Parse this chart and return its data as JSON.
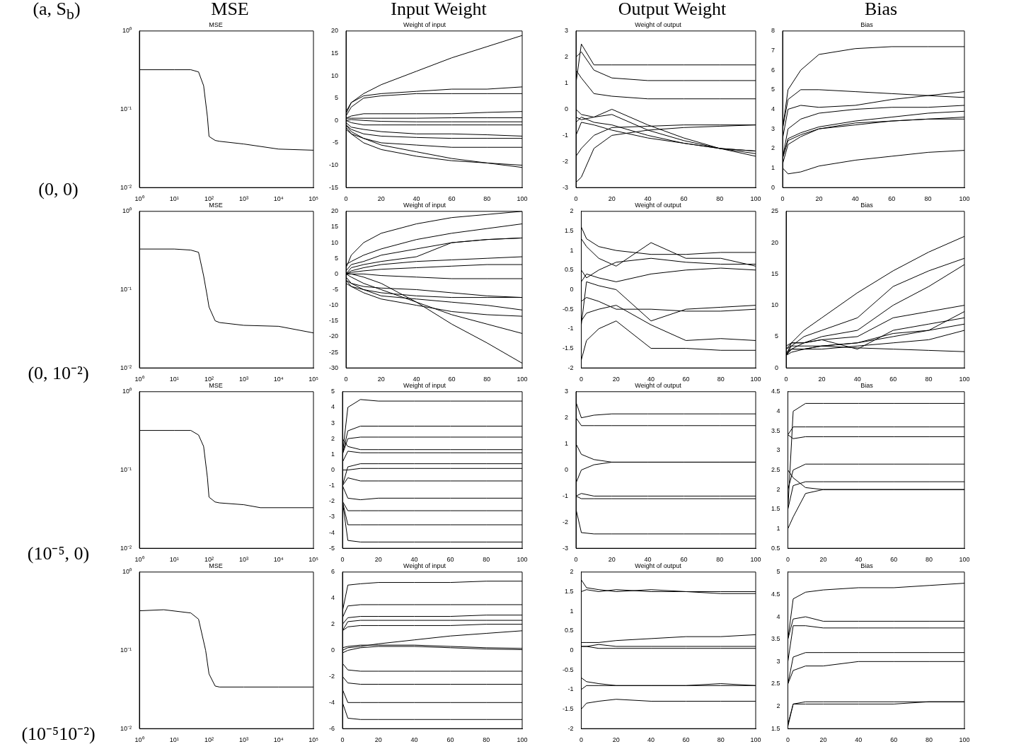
{
  "chart_data": [
    {
      "type": "line",
      "title": "MSE",
      "annotations": [
        "(a, S$_{b}$)",
        "MSE",
        "(0, 0)"
      ],
      "log": "xy",
      "marker": "none",
      "line_style": "solid",
      "x": [
        1,
        10,
        30,
        50,
        70,
        90,
        100,
        150,
        200,
        1000,
        10000,
        100000
      ],
      "xlim": [
        1,
        100000
      ],
      "xticks": [
        {
          "value": 1,
          "label": "10⁰"
        },
        {
          "value": 10,
          "label": "10¹"
        },
        {
          "value": 100,
          "label": "10²"
        },
        {
          "value": 1000,
          "label": "10³"
        },
        {
          "value": 10000,
          "label": "10⁴"
        },
        {
          "value": 100000,
          "label": "10⁵"
        }
      ],
      "ylim": [
        0.01,
        1
      ],
      "yticks": [
        {
          "value": 0.01,
          "label": "10⁻²"
        },
        {
          "value": 0.1,
          "label": "10⁻¹"
        },
        {
          "value": 1,
          "label": "10⁰"
        }
      ],
      "series": [
        {
          "color": "#000000",
          "values": [
            0.32,
            0.32,
            0.32,
            0.3,
            0.2,
            0.08,
            0.045,
            0.04,
            0.039,
            0.036,
            0.031,
            0.03
          ]
        }
      ]
    },
    {
      "type": "line",
      "title": "Weight of input",
      "annotations": [
        "Input Weight"
      ],
      "marker": "none",
      "line_style": "solid",
      "x": [
        0,
        3,
        10,
        20,
        40,
        60,
        80,
        100
      ],
      "xlim": [
        0,
        100
      ],
      "xticks": [
        0,
        20,
        40,
        60,
        80,
        100
      ],
      "ylim": [
        -15,
        20
      ],
      "yticks": [
        -15,
        -10,
        -5,
        0,
        5,
        10,
        15,
        20
      ],
      "series": [
        {
          "color": "#000000",
          "values": [
            2,
            4,
            6,
            8,
            11,
            14,
            16.5,
            19
          ]
        },
        {
          "color": "#000000",
          "values": [
            1.5,
            4,
            5.5,
            6,
            6.5,
            7,
            7,
            7.5
          ]
        },
        {
          "color": "#000000",
          "values": [
            1,
            3,
            5,
            5.5,
            6,
            6,
            6,
            6
          ]
        },
        {
          "color": "#000000",
          "values": [
            0.5,
            1,
            1.5,
            1.5,
            1.5,
            1.5,
            1.8,
            2
          ]
        },
        {
          "color": "#000000",
          "values": [
            0.5,
            0.5,
            0.5,
            0.5,
            0.5,
            0.6,
            0.6,
            0.6
          ]
        },
        {
          "color": "#000000",
          "values": [
            0,
            0.2,
            0,
            -0.2,
            -0.3,
            -0.3,
            -0.3,
            -0.3
          ]
        },
        {
          "color": "#000000",
          "values": [
            0,
            -0.5,
            -1,
            -1,
            -1,
            -1,
            -1,
            -1
          ]
        },
        {
          "color": "#000000",
          "values": [
            -0.5,
            -1.5,
            -2,
            -2.5,
            -3,
            -3,
            -3.2,
            -3.5
          ]
        },
        {
          "color": "#000000",
          "values": [
            -1,
            -2,
            -3,
            -3.5,
            -3.8,
            -4,
            -4,
            -4
          ]
        },
        {
          "color": "#000000",
          "values": [
            -1.5,
            -3,
            -4,
            -5,
            -5.5,
            -6,
            -6,
            -6
          ]
        },
        {
          "color": "#000000",
          "values": [
            -2,
            -3,
            -5,
            -6.5,
            -8,
            -9,
            -9.5,
            -10
          ]
        },
        {
          "color": "#000000",
          "values": [
            -1,
            -2.5,
            -4,
            -5.5,
            -7,
            -8.5,
            -9.5,
            -10.5
          ]
        }
      ]
    },
    {
      "type": "line",
      "title": "Weight of output",
      "annotations": [
        "Output Weight"
      ],
      "marker": "none",
      "line_style": "solid",
      "x": [
        0,
        3,
        10,
        20,
        40,
        60,
        80,
        100
      ],
      "xlim": [
        0,
        100
      ],
      "xticks": [
        0,
        20,
        40,
        60,
        80,
        100
      ],
      "ylim": [
        -3,
        3
      ],
      "yticks": [
        -3,
        -2,
        -1,
        0,
        1,
        2,
        3
      ],
      "series": [
        {
          "color": "#000000",
          "values": [
            1,
            2.5,
            1.7,
            1.7,
            1.7,
            1.7,
            1.7,
            1.7
          ]
        },
        {
          "color": "#000000",
          "values": [
            2,
            2.2,
            1.5,
            1.2,
            1.1,
            1.1,
            1.1,
            1.1
          ]
        },
        {
          "color": "#000000",
          "values": [
            1.5,
            1.2,
            0.6,
            0.5,
            0.4,
            0.4,
            0.4,
            0.4
          ]
        },
        {
          "color": "#000000",
          "values": [
            0,
            -0.2,
            -0.3,
            0,
            -0.6,
            -1.1,
            -1.5,
            -1.8
          ]
        },
        {
          "color": "#000000",
          "values": [
            -0.3,
            -0.4,
            -0.3,
            -0.2,
            -0.8,
            -1.2,
            -1.5,
            -1.7
          ]
        },
        {
          "color": "#000000",
          "values": [
            -0.5,
            -0.3,
            -0.5,
            -0.6,
            -1,
            -1.3,
            -1.5,
            -1.6
          ]
        },
        {
          "color": "#000000",
          "values": [
            -1,
            -0.5,
            -0.6,
            -0.8,
            -1.1,
            -1.3,
            -1.5,
            -1.6
          ]
        },
        {
          "color": "#000000",
          "values": [
            -1.8,
            -1.5,
            -1,
            -0.7,
            -0.65,
            -0.6,
            -0.6,
            -0.6
          ]
        },
        {
          "color": "#000000",
          "values": [
            -2.8,
            -2.6,
            -1.5,
            -1,
            -0.8,
            -0.7,
            -0.65,
            -0.6
          ]
        }
      ]
    },
    {
      "type": "line",
      "title": "Bias",
      "annotations": [
        "Bias"
      ],
      "marker": "none",
      "line_style": "solid",
      "x": [
        0,
        3,
        10,
        20,
        40,
        60,
        80,
        100
      ],
      "xlim": [
        0,
        100
      ],
      "xticks": [
        0,
        20,
        40,
        60,
        80,
        100
      ],
      "ylim": [
        0,
        8
      ],
      "yticks": [
        0,
        1,
        2,
        3,
        4,
        5,
        6,
        7,
        8
      ],
      "series": [
        {
          "color": "#000000",
          "values": [
            3,
            5,
            6,
            6.8,
            7.1,
            7.2,
            7.2,
            7.2
          ]
        },
        {
          "color": "#000000",
          "values": [
            3,
            4.5,
            5,
            5,
            4.9,
            4.8,
            4.7,
            4.6
          ]
        },
        {
          "color": "#000000",
          "values": [
            2.5,
            4,
            4.2,
            4.1,
            4.2,
            4.5,
            4.7,
            4.9
          ]
        },
        {
          "color": "#000000",
          "values": [
            1.5,
            3,
            3.5,
            3.8,
            4,
            4.1,
            4.1,
            4.2
          ]
        },
        {
          "color": "#000000",
          "values": [
            1.5,
            2.5,
            2.8,
            3.1,
            3.4,
            3.6,
            3.8,
            3.9
          ]
        },
        {
          "color": "#000000",
          "values": [
            1.5,
            2.4,
            2.7,
            3,
            3.3,
            3.4,
            3.5,
            3.6
          ]
        },
        {
          "color": "#000000",
          "values": [
            1.2,
            2.2,
            2.6,
            3,
            3.2,
            3.4,
            3.5,
            3.5
          ]
        },
        {
          "color": "#000000",
          "values": [
            1,
            0.7,
            0.8,
            1.1,
            1.4,
            1.6,
            1.8,
            1.9
          ]
        }
      ]
    },
    {
      "type": "line",
      "title": "MSE",
      "annotations": [
        "(0, 10⁻²)"
      ],
      "log": "xy",
      "marker": "none",
      "line_style": "solid",
      "x": [
        1,
        10,
        30,
        50,
        70,
        90,
        100,
        150,
        200,
        1000,
        10000,
        100000
      ],
      "xlim": [
        1,
        100000
      ],
      "xticks": [
        {
          "value": 1,
          "label": "10⁰"
        },
        {
          "value": 10,
          "label": "10¹"
        },
        {
          "value": 100,
          "label": "10²"
        },
        {
          "value": 1000,
          "label": "10³"
        },
        {
          "value": 10000,
          "label": "10⁴"
        },
        {
          "value": 100000,
          "label": "10⁵"
        }
      ],
      "ylim": [
        0.01,
        1
      ],
      "yticks": [
        {
          "value": 0.01,
          "label": "10⁻²"
        },
        {
          "value": 0.1,
          "label": "10⁻¹"
        },
        {
          "value": 1,
          "label": "10⁰"
        }
      ],
      "series": [
        {
          "color": "#000000",
          "values": [
            0.33,
            0.33,
            0.32,
            0.3,
            0.15,
            0.08,
            0.06,
            0.04,
            0.038,
            0.035,
            0.034,
            0.028
          ]
        }
      ]
    },
    {
      "type": "line",
      "title": "Weight of input",
      "marker": "none",
      "line_style": "solid",
      "x": [
        0,
        3,
        10,
        20,
        40,
        60,
        80,
        100
      ],
      "xlim": [
        0,
        100
      ],
      "xticks": [
        0,
        20,
        40,
        60,
        80,
        100
      ],
      "ylim": [
        -30,
        20
      ],
      "yticks": [
        -30,
        -25,
        -20,
        -15,
        -10,
        -5,
        0,
        5,
        10,
        15,
        20
      ],
      "series": [
        {
          "color": "#000000",
          "values": [
            2,
            6,
            10,
            13,
            16,
            18,
            19,
            20
          ]
        },
        {
          "color": "#000000",
          "values": [
            3,
            4,
            6,
            8,
            11,
            13,
            14.5,
            16
          ]
        },
        {
          "color": "#000000",
          "values": [
            1,
            3,
            4,
            6,
            8,
            10,
            11,
            11.5
          ]
        },
        {
          "color": "#000000",
          "values": [
            0,
            2,
            3,
            4,
            5.5,
            10,
            11,
            11.5
          ]
        },
        {
          "color": "#000000",
          "values": [
            0,
            1,
            2,
            3,
            4,
            4.5,
            5,
            5.5
          ]
        },
        {
          "color": "#000000",
          "values": [
            0,
            0.5,
            1,
            1.5,
            2,
            2.5,
            3,
            3
          ]
        },
        {
          "color": "#000000",
          "values": [
            0,
            0,
            0,
            -0.5,
            -1,
            -1.5,
            -1.5,
            -1.5
          ]
        },
        {
          "color": "#000000",
          "values": [
            -2,
            -3,
            -4,
            -4.5,
            -5,
            -6,
            -7,
            -7.5
          ]
        },
        {
          "color": "#000000",
          "values": [
            -3,
            -4,
            -5,
            -6,
            -7,
            -7.5,
            -7.5,
            -7.5
          ]
        },
        {
          "color": "#000000",
          "values": [
            -1,
            -3,
            -5,
            -7,
            -8,
            -9,
            -10,
            -11.5
          ]
        },
        {
          "color": "#000000",
          "values": [
            -2,
            -4,
            -6,
            -8,
            -10,
            -12,
            -13,
            -13.5
          ]
        },
        {
          "color": "#000000",
          "values": [
            0,
            -1,
            -3,
            -5,
            -9,
            -13,
            -16,
            -19
          ]
        },
        {
          "color": "#000000",
          "values": [
            0,
            0,
            -1,
            -3,
            -9,
            -16,
            -22,
            -28.5
          ]
        }
      ]
    },
    {
      "type": "line",
      "title": "Weight of output",
      "marker": "none",
      "line_style": "solid",
      "x": [
        0,
        3,
        10,
        20,
        40,
        60,
        80,
        100
      ],
      "xlim": [
        0,
        100
      ],
      "xticks": [
        0,
        20,
        40,
        60,
        80,
        100
      ],
      "ylim": [
        -2,
        2
      ],
      "yticks": [
        -2,
        -1.5,
        -1,
        -0.5,
        0,
        0.5,
        1,
        1.5,
        2
      ],
      "series": [
        {
          "color": "#000000",
          "values": [
            1.6,
            1.3,
            1.1,
            1,
            0.9,
            0.9,
            0.95,
            0.95
          ]
        },
        {
          "color": "#000000",
          "values": [
            1.3,
            1.1,
            0.8,
            0.6,
            1.2,
            0.8,
            0.8,
            0.6
          ]
        },
        {
          "color": "#000000",
          "values": [
            0.5,
            0.3,
            0.5,
            0.7,
            0.8,
            0.7,
            0.65,
            0.65
          ]
        },
        {
          "color": "#000000",
          "values": [
            0.2,
            0.4,
            0.3,
            0.2,
            0.4,
            0.5,
            0.55,
            0.5
          ]
        },
        {
          "color": "#000000",
          "values": [
            -0.9,
            0.2,
            0.1,
            0,
            -0.8,
            -0.5,
            -0.45,
            -0.4
          ]
        },
        {
          "color": "#000000",
          "values": [
            -0.3,
            -0.2,
            -0.3,
            -0.5,
            -0.5,
            -0.55,
            -0.55,
            -0.5
          ]
        },
        {
          "color": "#000000",
          "values": [
            -0.8,
            -0.6,
            -0.5,
            -0.4,
            -0.9,
            -1.3,
            -1.25,
            -1.3
          ]
        },
        {
          "color": "#000000",
          "values": [
            -1.8,
            -1.3,
            -1,
            -0.8,
            -1.5,
            -1.5,
            -1.55,
            -1.55
          ]
        }
      ]
    },
    {
      "type": "line",
      "title": "Bias",
      "marker": "none",
      "line_style": "solid",
      "x": [
        0,
        3,
        10,
        20,
        40,
        60,
        80,
        100
      ],
      "xlim": [
        0,
        100
      ],
      "xticks": [
        0,
        20,
        40,
        60,
        80,
        100
      ],
      "ylim": [
        0,
        25
      ],
      "yticks": [
        0,
        5,
        10,
        15,
        20,
        25
      ],
      "series": [
        {
          "color": "#000000",
          "values": [
            2,
            4,
            6,
            8,
            12,
            15.5,
            18.5,
            21
          ]
        },
        {
          "color": "#000000",
          "values": [
            2,
            3.5,
            5,
            6,
            8,
            13,
            15.5,
            17.5
          ]
        },
        {
          "color": "#000000",
          "values": [
            2,
            3,
            4,
            5,
            6,
            10,
            13,
            16.5
          ]
        },
        {
          "color": "#000000",
          "values": [
            3,
            4,
            4,
            4.5,
            5,
            8,
            9,
            10
          ]
        },
        {
          "color": "#000000",
          "values": [
            3.5,
            4,
            4,
            4.5,
            3,
            6,
            7,
            8
          ]
        },
        {
          "color": "#000000",
          "values": [
            2.5,
            3,
            3,
            3.5,
            4,
            5.5,
            6,
            9
          ]
        },
        {
          "color": "#000000",
          "values": [
            2,
            3,
            3,
            3.5,
            4,
            5,
            6,
            7
          ]
        },
        {
          "color": "#000000",
          "values": [
            2,
            2.5,
            3,
            3,
            3.5,
            4,
            4.5,
            6
          ]
        },
        {
          "color": "#000000",
          "values": [
            3,
            3.5,
            3.5,
            3.5,
            3.2,
            3,
            2.8,
            2.6
          ]
        }
      ]
    },
    {
      "type": "line",
      "title": "MSE",
      "annotations": [
        "(10⁻⁵, 0)"
      ],
      "log": "xy",
      "marker": "none",
      "line_style": "solid",
      "x": [
        1,
        10,
        30,
        50,
        70,
        90,
        100,
        150,
        200,
        1000,
        3000,
        100000
      ],
      "xlim": [
        1,
        100000
      ],
      "xticks": [
        {
          "value": 1,
          "label": "10⁰"
        },
        {
          "value": 10,
          "label": "10¹"
        },
        {
          "value": 100,
          "label": "10²"
        },
        {
          "value": 1000,
          "label": "10³"
        },
        {
          "value": 10000,
          "label": "10⁴"
        },
        {
          "value": 100000,
          "label": "10⁵"
        }
      ],
      "ylim": [
        0.01,
        1
      ],
      "yticks": [
        {
          "value": 0.01,
          "label": "10⁻²"
        },
        {
          "value": 0.1,
          "label": "10⁻¹"
        },
        {
          "value": 1,
          "label": "10⁰"
        }
      ],
      "series": [
        {
          "color": "#000000",
          "values": [
            0.32,
            0.32,
            0.32,
            0.28,
            0.2,
            0.08,
            0.045,
            0.039,
            0.038,
            0.036,
            0.033,
            0.033
          ]
        }
      ]
    },
    {
      "type": "line",
      "title": "Weight of input",
      "marker": "none",
      "line_style": "solid",
      "x": [
        0,
        3,
        10,
        20,
        40,
        60,
        80,
        100
      ],
      "xlim": [
        0,
        100
      ],
      "xticks": [
        0,
        20,
        40,
        60,
        80,
        100
      ],
      "ylim": [
        -5,
        5
      ],
      "yticks": [
        -5,
        -4,
        -3,
        -2,
        -1,
        0,
        1,
        2,
        3,
        4,
        5
      ],
      "series": [
        {
          "color": "#000000",
          "values": [
            1,
            4,
            4.5,
            4.4,
            4.4,
            4.4,
            4.4,
            4.4
          ]
        },
        {
          "color": "#000000",
          "values": [
            1,
            2.5,
            2.8,
            2.8,
            2.8,
            2.8,
            2.8,
            2.8
          ]
        },
        {
          "color": "#000000",
          "values": [
            1,
            2,
            2.1,
            2.1,
            2.1,
            2.1,
            2.1,
            2.1
          ]
        },
        {
          "color": "#000000",
          "values": [
            2,
            1.5,
            1.3,
            1.3,
            1.3,
            1.3,
            1.3,
            1.3
          ]
        },
        {
          "color": "#000000",
          "values": [
            0.5,
            1.2,
            1.1,
            1.1,
            1.1,
            1.1,
            1.1,
            1.1
          ]
        },
        {
          "color": "#000000",
          "values": [
            -1,
            0.2,
            0.4,
            0.4,
            0.4,
            0.4,
            0.4,
            0.4
          ]
        },
        {
          "color": "#000000",
          "values": [
            0,
            0,
            0.1,
            0.1,
            0.1,
            0.1,
            0.1,
            0.1
          ]
        },
        {
          "color": "#000000",
          "values": [
            -1,
            -0.5,
            -0.7,
            -0.7,
            -0.7,
            -0.7,
            -0.7,
            -0.7
          ]
        },
        {
          "color": "#000000",
          "values": [
            -1,
            -1.8,
            -1.9,
            -1.8,
            -1.8,
            -1.8,
            -1.8,
            -1.8
          ]
        },
        {
          "color": "#000000",
          "values": [
            -2,
            -2.6,
            -2.6,
            -2.6,
            -2.6,
            -2.6,
            -2.6,
            -2.6
          ]
        },
        {
          "color": "#000000",
          "values": [
            -2,
            -3.5,
            -3.5,
            -3.5,
            -3.5,
            -3.5,
            -3.5,
            -3.5
          ]
        },
        {
          "color": "#000000",
          "values": [
            -2,
            -4.5,
            -4.6,
            -4.6,
            -4.6,
            -4.6,
            -4.6,
            -4.6
          ]
        }
      ]
    },
    {
      "type": "line",
      "title": "Weight of output",
      "marker": "none",
      "line_style": "solid",
      "x": [
        0,
        3,
        10,
        20,
        40,
        60,
        80,
        100
      ],
      "xlim": [
        0,
        100
      ],
      "xticks": [
        0,
        20,
        40,
        60,
        80,
        100
      ],
      "ylim": [
        -3,
        3
      ],
      "yticks": [
        -3,
        -2,
        -1,
        0,
        1,
        2,
        3
      ],
      "series": [
        {
          "color": "#000000",
          "values": [
            2.6,
            2,
            2.1,
            2.15,
            2.15,
            2.15,
            2.15,
            2.15
          ]
        },
        {
          "color": "#000000",
          "values": [
            2,
            1.7,
            1.7,
            1.7,
            1.7,
            1.7,
            1.7,
            1.7
          ]
        },
        {
          "color": "#000000",
          "values": [
            1,
            0.6,
            0.4,
            0.3,
            0.3,
            0.3,
            0.3,
            0.3
          ]
        },
        {
          "color": "#000000",
          "values": [
            -0.5,
            0,
            0.2,
            0.3,
            0.3,
            0.3,
            0.3,
            0.3
          ]
        },
        {
          "color": "#000000",
          "values": [
            -1,
            -0.9,
            -1,
            -1,
            -1,
            -1,
            -1,
            -1
          ]
        },
        {
          "color": "#000000",
          "values": [
            -1,
            -1.1,
            -1.1,
            -1.1,
            -1.1,
            -1.1,
            -1.1,
            -1.1
          ]
        },
        {
          "color": "#000000",
          "values": [
            -1.5,
            -2.4,
            -2.45,
            -2.45,
            -2.45,
            -2.45,
            -2.45,
            -2.45
          ]
        }
      ]
    },
    {
      "type": "line",
      "title": "Bias",
      "marker": "none",
      "line_style": "solid",
      "x": [
        0,
        3,
        10,
        20,
        40,
        60,
        80,
        100
      ],
      "xlim": [
        0,
        100
      ],
      "xticks": [
        0,
        20,
        40,
        60,
        80,
        100
      ],
      "ylim": [
        0.5,
        4.5
      ],
      "yticks": [
        0.5,
        1,
        1.5,
        2,
        2.5,
        3,
        3.5,
        4,
        4.5
      ],
      "series": [
        {
          "color": "#000000",
          "values": [
            1.5,
            4,
            4.2,
            4.2,
            4.2,
            4.2,
            4.2,
            4.2
          ]
        },
        {
          "color": "#000000",
          "values": [
            3.4,
            3.6,
            3.6,
            3.6,
            3.6,
            3.6,
            3.6,
            3.6
          ]
        },
        {
          "color": "#000000",
          "values": [
            3.4,
            3.3,
            3.35,
            3.35,
            3.35,
            3.35,
            3.35,
            3.35
          ]
        },
        {
          "color": "#000000",
          "values": [
            2,
            2.5,
            2.65,
            2.65,
            2.65,
            2.65,
            2.65,
            2.65
          ]
        },
        {
          "color": "#000000",
          "values": [
            1.5,
            2.1,
            2.2,
            2.2,
            2.2,
            2.2,
            2.2,
            2.2
          ]
        },
        {
          "color": "#000000",
          "values": [
            2.5,
            2.3,
            2.05,
            2,
            2,
            2,
            2,
            2
          ]
        },
        {
          "color": "#000000",
          "values": [
            1,
            1.3,
            1.9,
            2,
            2,
            2,
            2,
            2
          ]
        }
      ]
    },
    {
      "type": "line",
      "title": "MSE",
      "annotations": [
        "(10⁻⁵10⁻²)"
      ],
      "log": "xy",
      "marker": "none",
      "line_style": "solid",
      "x": [
        1,
        5,
        30,
        50,
        80,
        100,
        150,
        200,
        1000,
        10000,
        100000
      ],
      "xlim": [
        1,
        100000
      ],
      "xticks": [
        {
          "value": 1,
          "label": "10⁰"
        },
        {
          "value": 10,
          "label": "10¹"
        },
        {
          "value": 100,
          "label": "10²"
        },
        {
          "value": 1000,
          "label": "10³"
        },
        {
          "value": 10000,
          "label": "10⁴"
        },
        {
          "value": 100000,
          "label": "10⁵"
        }
      ],
      "ylim": [
        0.01,
        1
      ],
      "yticks": [
        {
          "value": 0.01,
          "label": "10⁻²"
        },
        {
          "value": 0.1,
          "label": "10⁻¹"
        },
        {
          "value": 1,
          "label": "10⁰"
        }
      ],
      "series": [
        {
          "color": "#000000",
          "values": [
            0.32,
            0.33,
            0.3,
            0.25,
            0.1,
            0.05,
            0.035,
            0.034,
            0.034,
            0.034,
            0.034
          ]
        }
      ]
    },
    {
      "type": "line",
      "title": "Weight of input",
      "marker": "none",
      "line_style": "solid",
      "x": [
        0,
        3,
        10,
        20,
        40,
        60,
        80,
        100
      ],
      "xlim": [
        0,
        100
      ],
      "xticks": [
        0,
        20,
        40,
        60,
        80,
        100
      ],
      "ylim": [
        -6,
        6
      ],
      "yticks": [
        -6,
        -4,
        -2,
        0,
        2,
        4,
        6
      ],
      "series": [
        {
          "color": "#000000",
          "values": [
            3,
            5,
            5.1,
            5.2,
            5.2,
            5.2,
            5.3,
            5.3
          ]
        },
        {
          "color": "#000000",
          "values": [
            2.5,
            3.4,
            3.5,
            3.5,
            3.5,
            3.5,
            3.5,
            3.5
          ]
        },
        {
          "color": "#000000",
          "values": [
            2,
            2.5,
            2.6,
            2.6,
            2.6,
            2.6,
            2.7,
            2.7
          ]
        },
        {
          "color": "#000000",
          "values": [
            1.5,
            2.2,
            2.3,
            2.3,
            2.3,
            2.3,
            2.3,
            2.3
          ]
        },
        {
          "color": "#000000",
          "values": [
            1.5,
            1.8,
            1.9,
            1.9,
            1.9,
            1.9,
            2,
            2
          ]
        },
        {
          "color": "#000000",
          "values": [
            0,
            0.2,
            0.3,
            0.5,
            0.8,
            1.1,
            1.3,
            1.5
          ]
        },
        {
          "color": "#000000",
          "values": [
            0.2,
            0.3,
            0.4,
            0.4,
            0.4,
            0.3,
            0.2,
            0.15
          ]
        },
        {
          "color": "#000000",
          "values": [
            -0.2,
            0,
            0.2,
            0.3,
            0.3,
            0.2,
            0.1,
            0.05
          ]
        },
        {
          "color": "#000000",
          "values": [
            -1,
            -1.5,
            -1.6,
            -1.6,
            -1.6,
            -1.6,
            -1.6,
            -1.6
          ]
        },
        {
          "color": "#000000",
          "values": [
            -2,
            -2.5,
            -2.6,
            -2.6,
            -2.6,
            -2.6,
            -2.6,
            -2.6
          ]
        },
        {
          "color": "#000000",
          "values": [
            -3,
            -4,
            -4,
            -4,
            -4,
            -4,
            -4,
            -4
          ]
        },
        {
          "color": "#000000",
          "values": [
            -4,
            -5.2,
            -5.3,
            -5.3,
            -5.3,
            -5.3,
            -5.3,
            -5.3
          ]
        }
      ]
    },
    {
      "type": "line",
      "title": "Weight of output",
      "marker": "none",
      "line_style": "solid",
      "x": [
        0,
        3,
        10,
        20,
        40,
        60,
        80,
        100
      ],
      "xlim": [
        0,
        100
      ],
      "xticks": [
        0,
        20,
        40,
        60,
        80,
        100
      ],
      "ylim": [
        -2,
        2
      ],
      "yticks": [
        -2,
        -1.5,
        -1,
        -0.5,
        0,
        0.5,
        1,
        1.5,
        2
      ],
      "series": [
        {
          "color": "#000000",
          "values": [
            1.8,
            1.6,
            1.55,
            1.5,
            1.55,
            1.5,
            1.5,
            1.5
          ]
        },
        {
          "color": "#000000",
          "values": [
            1.5,
            1.55,
            1.5,
            1.55,
            1.5,
            1.5,
            1.45,
            1.45
          ]
        },
        {
          "color": "#000000",
          "values": [
            0.2,
            0.2,
            0.2,
            0.25,
            0.3,
            0.35,
            0.35,
            0.4
          ]
        },
        {
          "color": "#000000",
          "values": [
            0.1,
            0.1,
            0.15,
            0.1,
            0.1,
            0.1,
            0.1,
            0.1
          ]
        },
        {
          "color": "#000000",
          "values": [
            0.1,
            0.1,
            0.05,
            0.05,
            0.05,
            0.05,
            0.05,
            0.05
          ]
        },
        {
          "color": "#000000",
          "values": [
            -0.7,
            -0.8,
            -0.85,
            -0.9,
            -0.9,
            -0.9,
            -0.9,
            -0.9
          ]
        },
        {
          "color": "#000000",
          "values": [
            -1,
            -0.9,
            -0.9,
            -0.9,
            -0.9,
            -0.9,
            -0.85,
            -0.9
          ]
        },
        {
          "color": "#000000",
          "values": [
            -1.5,
            -1.35,
            -1.3,
            -1.25,
            -1.3,
            -1.3,
            -1.3,
            -1.3
          ]
        }
      ]
    },
    {
      "type": "line",
      "title": "Bias",
      "marker": "none",
      "line_style": "solid",
      "x": [
        0,
        3,
        10,
        20,
        40,
        60,
        80,
        100
      ],
      "xlim": [
        0,
        100
      ],
      "xticks": [
        0,
        20,
        40,
        60,
        80,
        100
      ],
      "ylim": [
        1.5,
        5
      ],
      "yticks": [
        1.5,
        2,
        2.5,
        3,
        3.5,
        4,
        4.5,
        5
      ],
      "series": [
        {
          "color": "#000000",
          "values": [
            3.5,
            4.4,
            4.55,
            4.6,
            4.65,
            4.65,
            4.7,
            4.75
          ]
        },
        {
          "color": "#000000",
          "values": [
            3.5,
            3.95,
            4,
            3.9,
            3.9,
            3.9,
            3.9,
            3.9
          ]
        },
        {
          "color": "#000000",
          "values": [
            3,
            3.8,
            3.8,
            3.75,
            3.75,
            3.75,
            3.75,
            3.75
          ]
        },
        {
          "color": "#000000",
          "values": [
            2.5,
            3.1,
            3.2,
            3.2,
            3.2,
            3.2,
            3.2,
            3.2
          ]
        },
        {
          "color": "#000000",
          "values": [
            2.5,
            2.8,
            2.9,
            2.9,
            3,
            3,
            3,
            3
          ]
        },
        {
          "color": "#000000",
          "values": [
            1.6,
            2.05,
            2.05,
            2.05,
            2.05,
            2.05,
            2.1,
            2.1
          ]
        },
        {
          "color": "#000000",
          "values": [
            1.55,
            2.05,
            2.1,
            2.1,
            2.1,
            2.1,
            2.1,
            2.1
          ]
        }
      ]
    }
  ]
}
